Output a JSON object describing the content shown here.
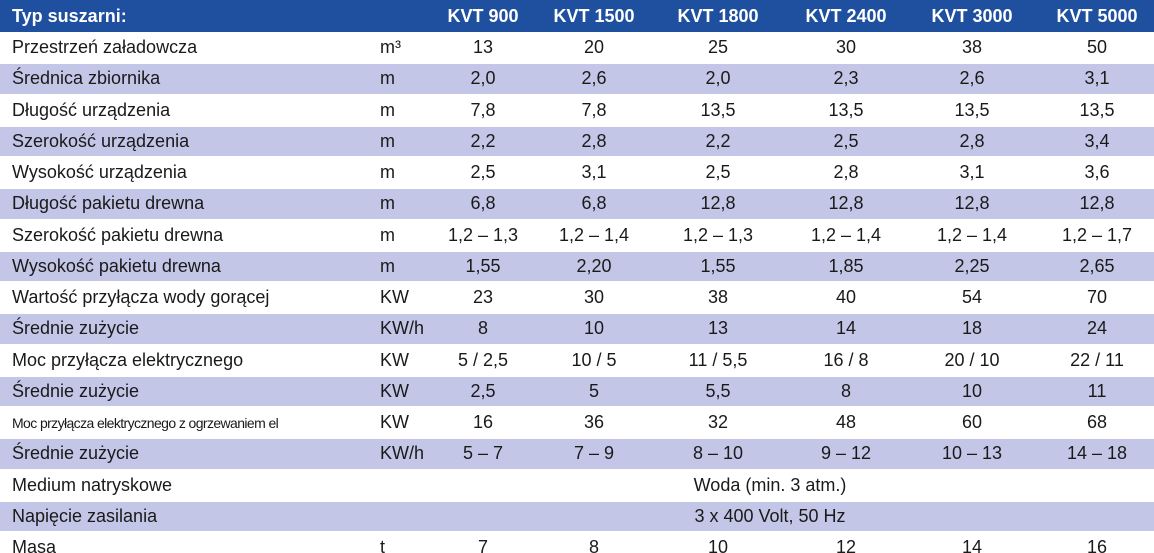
{
  "table": {
    "header": {
      "label": "Typ suszarni:",
      "columns": [
        "KVT 900",
        "KVT 1500",
        "KVT 1800",
        "KVT 2400",
        "KVT 3000",
        "KVT 5000"
      ]
    },
    "rows": [
      {
        "label": "Przestrzeń załadowcza",
        "unit": "m³",
        "values": [
          "13",
          "20",
          "25",
          "30",
          "38",
          "50"
        ]
      },
      {
        "label": "Średnica zbiornika",
        "unit": "m",
        "values": [
          "2,0",
          "2,6",
          "2,0",
          "2,3",
          "2,6",
          "3,1"
        ]
      },
      {
        "label": "Długość urządzenia",
        "unit": "m",
        "values": [
          "7,8",
          "7,8",
          "13,5",
          "13,5",
          "13,5",
          "13,5"
        ]
      },
      {
        "label": "Szerokość urządzenia",
        "unit": "m",
        "values": [
          "2,2",
          "2,8",
          "2,2",
          "2,5",
          "2,8",
          "3,4"
        ]
      },
      {
        "label": "Wysokość urządzenia",
        "unit": "m",
        "values": [
          "2,5",
          "3,1",
          "2,5",
          "2,8",
          "3,1",
          "3,6"
        ]
      },
      {
        "label": "Długość pakietu drewna",
        "unit": "m",
        "values": [
          "6,8",
          "6,8",
          "12,8",
          "12,8",
          "12,8",
          "12,8"
        ]
      },
      {
        "label": "Szerokość pakietu drewna",
        "unit": "m",
        "values": [
          "1,2 – 1,3",
          "1,2 – 1,4",
          "1,2 – 1,3",
          "1,2 – 1,4",
          "1,2 – 1,4",
          "1,2 – 1,7"
        ]
      },
      {
        "label": "Wysokość pakietu drewna",
        "unit": "m",
        "values": [
          "1,55",
          "2,20",
          "1,55",
          "1,85",
          "2,25",
          "2,65"
        ]
      },
      {
        "label": "Wartość przyłącza wody gorącej",
        "unit": "KW",
        "values": [
          "23",
          "30",
          "38",
          "40",
          "54",
          "70"
        ]
      },
      {
        "label": "Średnie zużycie",
        "unit": "KW/h",
        "values": [
          "8",
          "10",
          "13",
          "14",
          "18",
          "24"
        ]
      },
      {
        "label": "Moc przyłącza elektrycznego",
        "unit": "KW",
        "values": [
          "5 / 2,5",
          "10 / 5",
          "11 / 5,5",
          "16 / 8",
          "20 / 10",
          "22 / 11"
        ]
      },
      {
        "label": "Średnie zużycie",
        "unit": "KW",
        "values": [
          "2,5",
          "5",
          "5,5",
          "8",
          "10",
          "11"
        ]
      },
      {
        "label": "Moc przyłącza elektrycznego z ogrzewaniem el",
        "unit": "KW",
        "values": [
          "16",
          "36",
          "32",
          "48",
          "60",
          "68"
        ]
      },
      {
        "label": "Średnie zużycie",
        "unit": "KW/h",
        "values": [
          "5 – 7",
          "7 – 9",
          "8 – 10",
          "9 – 12",
          "10 – 13",
          "14 – 18"
        ]
      },
      {
        "label": "Medium natryskowe",
        "value": "Woda (min. 3 atm.)"
      },
      {
        "label": "Napięcie zasilania",
        "value": "3 x 400 Volt, 50 Hz"
      },
      {
        "label": "Masa",
        "unit": "t",
        "values": [
          "7",
          "8",
          "10",
          "12",
          "14",
          "16"
        ]
      }
    ]
  }
}
